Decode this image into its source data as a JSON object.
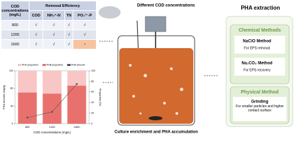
{
  "table": {
    "header": [
      "COD concentrations (mg/L)",
      "Removal Efficiency"
    ],
    "subheaders": [
      "COD",
      "NH₄⁺-N",
      "TN",
      "PO₄³⁻-P"
    ],
    "rows": [
      [
        "800",
        "√",
        "√",
        "√",
        "√"
      ],
      [
        "1200",
        "√",
        "√",
        "√",
        "√"
      ],
      [
        "1600",
        "√",
        "√",
        "√",
        "×"
      ]
    ]
  },
  "chart_data": {
    "type": "bar",
    "categories": [
      "800",
      "1200",
      "1600"
    ],
    "series": [
      {
        "name": "PHV proportion",
        "color": "#f8c6c4",
        "values": [
          41,
          43,
          28
        ],
        "axis": "y2"
      },
      {
        "name": "PHB proportion",
        "color": "#e8716e",
        "values": [
          59,
          57,
          72
        ],
        "axis": "y2"
      },
      {
        "name": "PHA amount",
        "color": "#555555",
        "values": [
          14,
          27,
          90
        ]
      }
    ],
    "ylim": [
      0,
      120
    ],
    "yticks": [
      0,
      40,
      80,
      120
    ],
    "y2lim": [
      0,
      100
    ],
    "y2ticks": [
      0,
      20,
      40,
      60,
      80,
      100
    ],
    "xlabel": "COD concentrations (mg/L)",
    "ylabel": "PHA amount (mg/g)",
    "y2label": "Proportion (%)"
  },
  "reactor": {
    "feed_label": "Different COD concentrations",
    "caption": "Culture enrichment and PHA accumulation"
  },
  "extraction": {
    "title": "PHA extraction",
    "chemical": {
      "title": "Chemical Methods",
      "methods": [
        {
          "name": "NaClO Method",
          "purpose": "For EPS removal"
        },
        {
          "name": "Na₂CO₃ Method",
          "purpose": "For EPS recovery"
        }
      ]
    },
    "physical": {
      "title": "Physical Method",
      "methods": [
        {
          "name": "Grinding",
          "purpose": "For smaller particles and higher contact surface"
        }
      ]
    }
  }
}
